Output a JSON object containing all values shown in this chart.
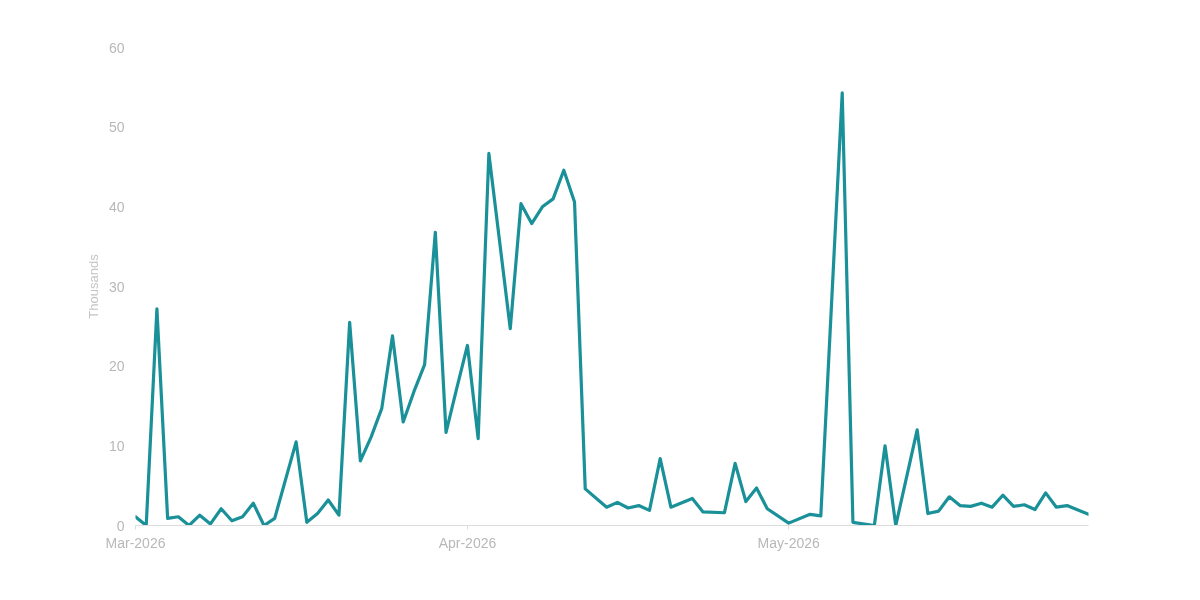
{
  "chart_data": {
    "type": "line",
    "ylabel": "Thousands",
    "x": [
      "2026-03-01",
      "2026-03-02",
      "2026-03-03",
      "2026-03-04",
      "2026-03-05",
      "2026-03-06",
      "2026-03-07",
      "2026-03-08",
      "2026-03-09",
      "2026-03-10",
      "2026-03-11",
      "2026-03-12",
      "2026-03-13",
      "2026-03-14",
      "2026-03-16",
      "2026-03-17",
      "2026-03-18",
      "2026-03-19",
      "2026-03-20",
      "2026-03-21",
      "2026-03-22",
      "2026-03-23",
      "2026-03-24",
      "2026-03-25",
      "2026-03-26",
      "2026-03-27",
      "2026-03-28",
      "2026-03-29",
      "2026-03-30",
      "2026-03-31",
      "2026-04-01",
      "2026-04-02",
      "2026-04-03",
      "2026-04-05",
      "2026-04-06",
      "2026-04-07",
      "2026-04-08",
      "2026-04-09",
      "2026-04-10",
      "2026-04-11",
      "2026-04-12",
      "2026-04-14",
      "2026-04-15",
      "2026-04-16",
      "2026-04-17",
      "2026-04-18",
      "2026-04-19",
      "2026-04-20",
      "2026-04-22",
      "2026-04-23",
      "2026-04-25",
      "2026-04-26",
      "2026-04-27",
      "2026-04-28",
      "2026-04-29",
      "2026-05-01",
      "2026-05-03",
      "2026-05-04",
      "2026-05-06",
      "2026-05-07",
      "2026-05-09",
      "2026-05-10",
      "2026-05-11",
      "2026-05-13",
      "2026-05-14",
      "2026-05-15",
      "2026-05-16",
      "2026-05-17",
      "2026-05-18",
      "2026-05-19",
      "2026-05-20",
      "2026-05-21",
      "2026-05-22",
      "2026-05-23",
      "2026-05-24",
      "2026-05-25",
      "2026-05-26",
      "2026-05-27",
      "2026-05-29"
    ],
    "series": [
      {
        "color": "#1a9199",
        "values": [
          1.1,
          0,
          27.2,
          0.9,
          1.1,
          0,
          1.3,
          0.2,
          2.1,
          0.6,
          1.1,
          2.8,
          0,
          0.9,
          10.5,
          0.4,
          1.5,
          3.2,
          1.3,
          25.5,
          8.1,
          11.1,
          14.7,
          23.8,
          13.0,
          16.8,
          20.2,
          36.8,
          11.7,
          17.2,
          22.6,
          10.9,
          46.7,
          24.7,
          40.4,
          37.9,
          40.0,
          41.0,
          44.6,
          40.6,
          4.6,
          2.3,
          2.9,
          2.2,
          2.5,
          1.9,
          8.4,
          2.3,
          3.4,
          1.7,
          1.6,
          7.8,
          3.0,
          4.7,
          2.1,
          0.3,
          1.4,
          1.2,
          54.3,
          0.4,
          0,
          10.0,
          0,
          12.0,
          1.5,
          1.8,
          3.6,
          2.5,
          2.4,
          2.8,
          2.3,
          3.8,
          2.4,
          2.6,
          2.0,
          4.1,
          2.3,
          2.5,
          1.4
        ]
      }
    ],
    "xlim": [
      "2026-03-01",
      "2026-05-29"
    ],
    "xticks": [
      {
        "value": "2026-03-01",
        "label": "Mar-2026"
      },
      {
        "value": "2026-04-01",
        "label": "Apr-2026"
      },
      {
        "value": "2026-05-01",
        "label": "May-2026"
      }
    ],
    "ylim": [
      0,
      60
    ],
    "yticks": [
      0,
      10,
      20,
      30,
      40,
      50,
      60
    ],
    "line_style": "solid",
    "marker": "none"
  }
}
